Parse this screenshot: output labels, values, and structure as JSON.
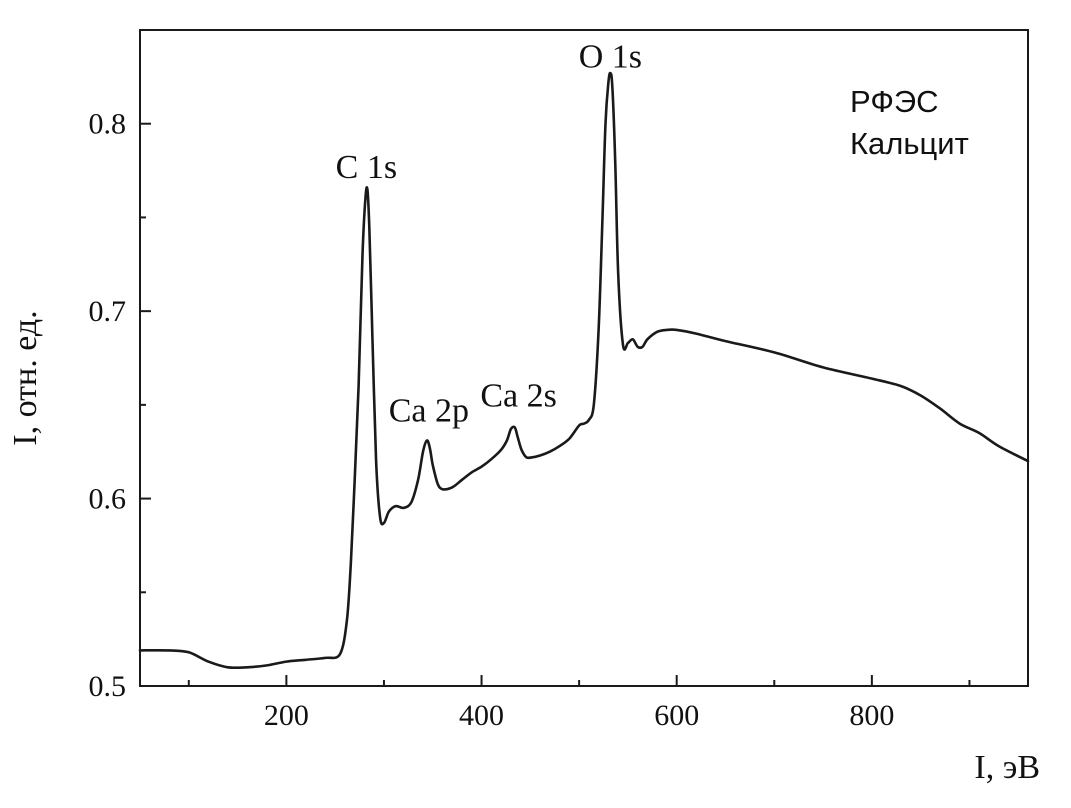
{
  "chart_data": {
    "type": "line",
    "xlabel": "I, эВ",
    "ylabel": "I, отн. ед.",
    "xlim": [
      50,
      960
    ],
    "ylim": [
      0.5,
      0.85
    ],
    "x_ticks_major": [
      200,
      400,
      600,
      800
    ],
    "x_ticks_minor": [
      100,
      300,
      500,
      700,
      900
    ],
    "y_ticks_major": [
      0.5,
      0.6,
      0.7,
      0.8
    ],
    "y_ticks_minor": [
      0.55,
      0.65,
      0.75
    ],
    "x_tick_labels": [
      "200",
      "400",
      "600",
      "800"
    ],
    "y_tick_labels": [
      "0.5",
      "0.6",
      "0.7",
      "0.8"
    ],
    "grid": false,
    "line_color": "#1a1a1a",
    "annotation_lines": [
      "РФЭС",
      "Кальцит"
    ],
    "peak_labels": [
      {
        "text": "C 1s",
        "x": 282,
        "y": 0.771
      },
      {
        "text": "Ca 2p",
        "x": 346,
        "y": 0.641
      },
      {
        "text": "Ca 2s",
        "x": 438,
        "y": 0.649
      },
      {
        "text": "O 1s",
        "x": 532,
        "y": 0.83
      }
    ],
    "series": [
      {
        "x": [
          50,
          80,
          100,
          120,
          140,
          160,
          180,
          200,
          220,
          240,
          255,
          262,
          266,
          270,
          274,
          278,
          281,
          283,
          285,
          288,
          292,
          296,
          300,
          305,
          312,
          320,
          328,
          335,
          340,
          344,
          347,
          350,
          355,
          360,
          370,
          380,
          390,
          400,
          410,
          420,
          426,
          430,
          434,
          437,
          441,
          446,
          452,
          460,
          470,
          480,
          490,
          500,
          505,
          510,
          515,
          520,
          524,
          527,
          530,
          532,
          534,
          537,
          540,
          545,
          550,
          555,
          560,
          565,
          570,
          580,
          590,
          600,
          620,
          650,
          700,
          750,
          800,
          830,
          850,
          870,
          890,
          910,
          930,
          960
        ],
        "y": [
          0.519,
          0.519,
          0.518,
          0.513,
          0.51,
          0.51,
          0.511,
          0.513,
          0.514,
          0.515,
          0.517,
          0.535,
          0.565,
          0.61,
          0.66,
          0.73,
          0.76,
          0.765,
          0.745,
          0.69,
          0.62,
          0.59,
          0.587,
          0.593,
          0.596,
          0.595,
          0.598,
          0.61,
          0.625,
          0.631,
          0.627,
          0.618,
          0.608,
          0.605,
          0.606,
          0.61,
          0.614,
          0.617,
          0.621,
          0.626,
          0.631,
          0.637,
          0.638,
          0.633,
          0.626,
          0.622,
          0.622,
          0.623,
          0.625,
          0.628,
          0.632,
          0.639,
          0.64,
          0.642,
          0.65,
          0.69,
          0.75,
          0.8,
          0.822,
          0.827,
          0.82,
          0.78,
          0.72,
          0.682,
          0.683,
          0.685,
          0.681,
          0.681,
          0.685,
          0.689,
          0.69,
          0.69,
          0.688,
          0.684,
          0.678,
          0.67,
          0.664,
          0.66,
          0.655,
          0.648,
          0.64,
          0.635,
          0.628,
          0.62
        ]
      }
    ]
  }
}
